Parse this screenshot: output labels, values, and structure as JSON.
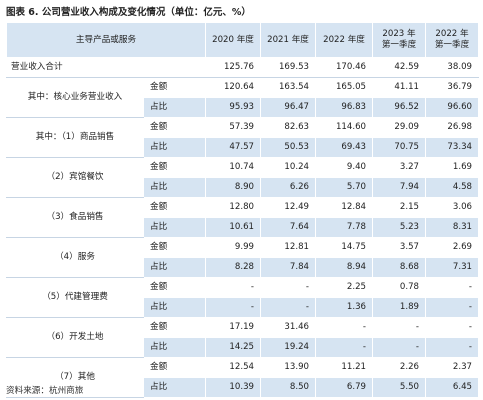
{
  "title": "图表 6. 公司营业收入构成及变化情况（单位：亿元、%）",
  "columns": {
    "item": "主导产品或服务",
    "years": [
      {
        "line1": "2020 年度",
        "line2": ""
      },
      {
        "line1": "2021 年度",
        "line2": ""
      },
      {
        "line1": "2022 年度",
        "line2": ""
      },
      {
        "line1": "2023 年",
        "line2": "第一季度"
      },
      {
        "line1": "2022 年",
        "line2": "第一季度"
      }
    ]
  },
  "total": {
    "label": "营业收入合计",
    "values": [
      "125.76",
      "169.53",
      "170.46",
      "42.59",
      "38.09"
    ]
  },
  "groups": [
    {
      "label": "其中：核心业务营业收入",
      "amount_label": "金额",
      "amount": [
        "120.64",
        "163.54",
        "165.05",
        "41.11",
        "36.79"
      ],
      "pct_label": "占比",
      "pct": [
        "95.93",
        "96.47",
        "96.83",
        "96.52",
        "96.60"
      ]
    },
    {
      "label": "其中：（1）商品销售",
      "amount_label": "金额",
      "amount": [
        "57.39",
        "82.63",
        "114.60",
        "29.09",
        "26.98"
      ],
      "pct_label": "占比",
      "pct": [
        "47.57",
        "50.53",
        "69.43",
        "70.75",
        "73.34"
      ]
    },
    {
      "label": "（2）宾馆餐饮",
      "amount_label": "金额",
      "amount": [
        "10.74",
        "10.24",
        "9.40",
        "3.27",
        "1.69"
      ],
      "pct_label": "占比",
      "pct": [
        "8.90",
        "6.26",
        "5.70",
        "7.94",
        "4.58"
      ]
    },
    {
      "label": "（3）食品销售",
      "amount_label": "金额",
      "amount": [
        "12.80",
        "12.49",
        "12.84",
        "2.15",
        "3.06"
      ],
      "pct_label": "占比",
      "pct": [
        "10.61",
        "7.64",
        "7.78",
        "5.23",
        "8.31"
      ]
    },
    {
      "label": "（4）服务",
      "amount_label": "金额",
      "amount": [
        "9.99",
        "12.81",
        "14.75",
        "3.57",
        "2.69"
      ],
      "pct_label": "占比",
      "pct": [
        "8.28",
        "7.84",
        "8.94",
        "8.68",
        "7.31"
      ]
    },
    {
      "label": "（5）代建管理费",
      "amount_label": "金额",
      "amount": [
        "-",
        "-",
        "2.25",
        "0.78",
        "-"
      ],
      "pct_label": "占比",
      "pct": [
        "-",
        "-",
        "1.36",
        "1.89",
        "-"
      ]
    },
    {
      "label": "（6）开发土地",
      "amount_label": "金额",
      "amount": [
        "17.19",
        "31.46",
        "-",
        "-",
        "-"
      ],
      "pct_label": "占比",
      "pct": [
        "14.25",
        "19.24",
        "-",
        "-",
        "-"
      ]
    },
    {
      "label": "（7）其他",
      "amount_label": "金额",
      "amount": [
        "12.54",
        "13.90",
        "11.21",
        "2.26",
        "2.37"
      ],
      "pct_label": "占比",
      "pct": [
        "10.39",
        "8.50",
        "6.79",
        "5.50",
        "6.45"
      ]
    }
  ],
  "source": "资料来源：杭州商旅"
}
